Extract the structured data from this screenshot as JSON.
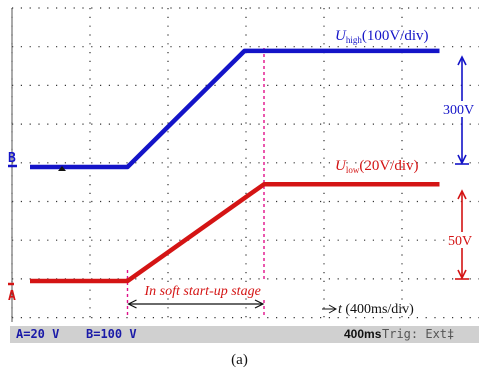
{
  "chart_data": {
    "type": "line",
    "x_unit": "ms",
    "x_scale": "400ms/div",
    "series": [
      {
        "name": "U_high",
        "label_main": "U",
        "label_sub": "high",
        "label_scale": "(100V/div)",
        "color": "#1414c8",
        "scale_per_div": 100,
        "unit": "V",
        "points": [
          [
            0,
            0
          ],
          [
            500,
            0
          ],
          [
            1100,
            300
          ],
          [
            2100,
            300
          ]
        ]
      },
      {
        "name": "U_low",
        "label_main": "U",
        "label_sub": "low",
        "label_scale": "(20V/div)",
        "color": "#d41414",
        "scale_per_div": 20,
        "unit": "V",
        "points": [
          [
            0,
            0
          ],
          [
            500,
            0
          ],
          [
            1200,
            50
          ],
          [
            2100,
            50
          ]
        ]
      }
    ],
    "annotations": {
      "soft_start_text": "In soft start-up stage",
      "soft_start_range": [
        500,
        1200
      ],
      "time_axis_label": "t (400ms/div)",
      "high_step_text": "300V",
      "low_step_text": "50V"
    },
    "channel_markers": {
      "a": "A",
      "b": "B"
    },
    "grid": true
  },
  "status_bar": {
    "channel_a": "A=20 V",
    "channel_b": "B=100 V",
    "timebase": "400ms",
    "trigger": "Trig: Ext‡"
  },
  "caption": "(a)"
}
